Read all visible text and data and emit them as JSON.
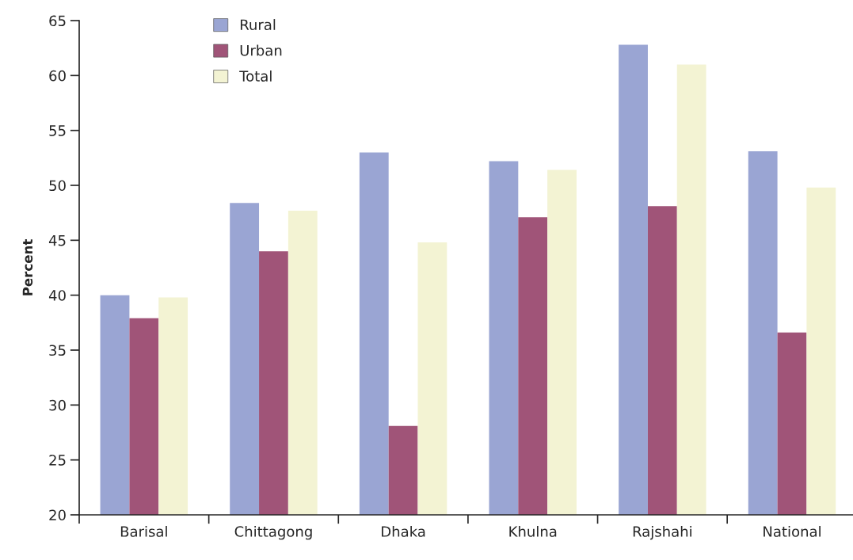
{
  "chart_data": {
    "type": "bar",
    "ylabel": "Percent",
    "categories": [
      "Barisal",
      "Chittagong",
      "Dhaka",
      "Khulna",
      "Rajshahi",
      "National"
    ],
    "series": [
      {
        "name": "Rural",
        "color": "#9aa5d3",
        "values": [
          40.0,
          48.4,
          53.0,
          52.2,
          62.8,
          53.1
        ]
      },
      {
        "name": "Urban",
        "color": "#a05478",
        "values": [
          37.9,
          44.0,
          28.1,
          47.1,
          48.1,
          36.6
        ]
      },
      {
        "name": "Total",
        "color": "#f3f3d3",
        "values": [
          39.8,
          47.7,
          44.8,
          51.4,
          61.0,
          49.8
        ]
      }
    ],
    "ylim": [
      20,
      65
    ],
    "yticks": [
      20,
      25,
      30,
      35,
      40,
      45,
      50,
      55,
      60,
      65
    ],
    "grid": false,
    "legend": "top left"
  }
}
